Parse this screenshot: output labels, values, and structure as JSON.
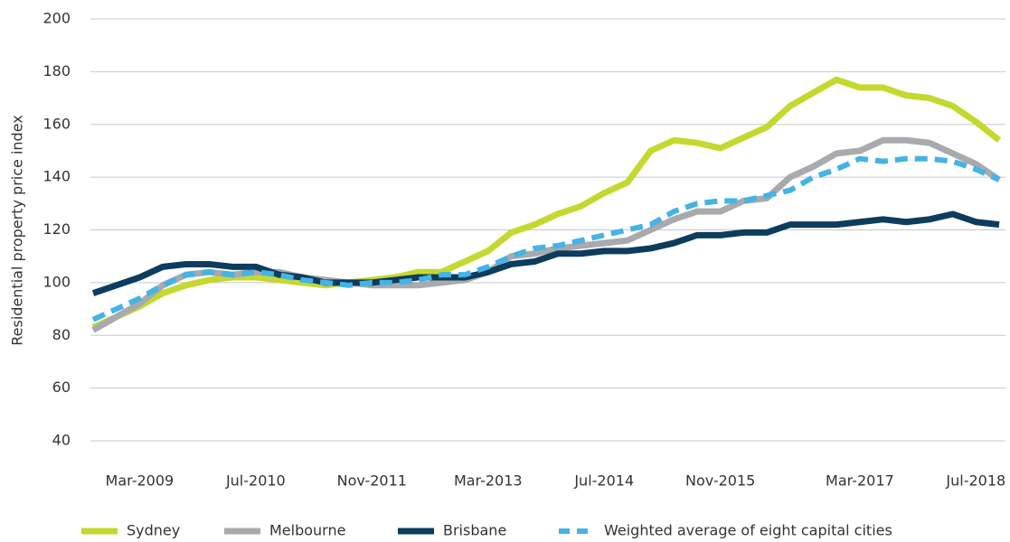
{
  "chart_data": {
    "type": "line",
    "y_label": "Residential property price index",
    "categories": [
      null,
      null,
      "Mar-2009",
      null,
      null,
      null,
      null,
      "Jul-2010",
      null,
      null,
      null,
      null,
      "Nov-2011",
      null,
      null,
      null,
      null,
      "Mar-2013",
      null,
      null,
      null,
      null,
      "Jul-2014",
      null,
      null,
      null,
      null,
      "Nov-2015",
      null,
      null,
      null,
      null,
      null,
      "Mar-2017",
      null,
      null,
      null,
      null,
      "Jul-2018",
      null
    ],
    "ylim": [
      40,
      200
    ],
    "yticks": [
      40,
      60,
      80,
      100,
      120,
      140,
      160,
      180,
      200
    ],
    "grid": true,
    "legend": "bottom",
    "series": [
      {
        "name": "Sydney",
        "color": "#c5d82f",
        "values": [
          83,
          87,
          91,
          96,
          99,
          101,
          102,
          102,
          101,
          100,
          99,
          100,
          101,
          102,
          104,
          104,
          108,
          112,
          119,
          122,
          126,
          129,
          134,
          138,
          150,
          154,
          153,
          151,
          155,
          159,
          167,
          172,
          177,
          174,
          174,
          171,
          170,
          167,
          161,
          154
        ]
      },
      {
        "name": "Melbourne",
        "color": "#a8aaad",
        "values": [
          82,
          87,
          92,
          99,
          103,
          104,
          103,
          104,
          104,
          102,
          101,
          100,
          99,
          99,
          99,
          100,
          101,
          104,
          110,
          111,
          113,
          114,
          115,
          116,
          120,
          124,
          127,
          127,
          131,
          132,
          140,
          144,
          149,
          150,
          154,
          154,
          153,
          149,
          145,
          139
        ]
      },
      {
        "name": "Brisbane",
        "color": "#0c3c5e",
        "values": [
          96,
          99,
          102,
          106,
          107,
          107,
          106,
          106,
          103,
          102,
          100,
          100,
          100,
          101,
          102,
          102,
          102,
          104,
          107,
          108,
          111,
          111,
          112,
          112,
          113,
          115,
          118,
          118,
          119,
          119,
          122,
          122,
          122,
          123,
          124,
          123,
          124,
          126,
          123,
          122
        ]
      },
      {
        "name": "Weighted average of eight capital cities",
        "color": "#44b3e5",
        "dashed": true,
        "values": [
          86,
          90,
          94,
          99,
          103,
          104,
          103,
          104,
          103,
          101,
          100,
          99,
          100,
          100,
          101,
          103,
          103,
          106,
          110,
          113,
          114,
          116,
          118,
          120,
          122,
          127,
          130,
          131,
          131,
          133,
          135,
          140,
          143,
          147,
          146,
          147,
          147,
          146,
          143,
          139
        ]
      }
    ]
  }
}
